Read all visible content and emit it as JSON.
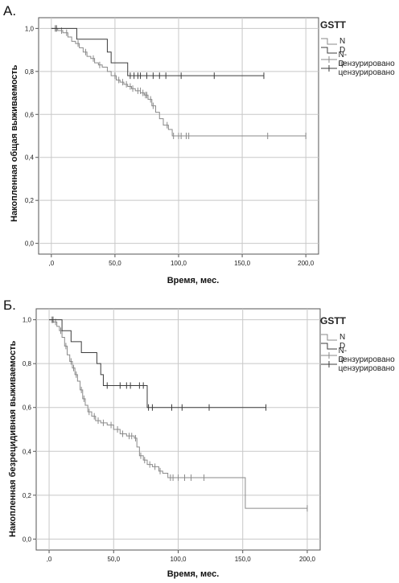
{
  "panels": [
    {
      "label": "А.",
      "legend": {
        "title": "GSTT",
        "items": [
          "N",
          "D",
          "N-цензурировано",
          "D-цензурировано"
        ]
      }
    },
    {
      "label": "Б.",
      "legend": {
        "title": "GSTT",
        "items": [
          "N",
          "D",
          "N-цензурировано",
          "D-цензурировано"
        ]
      }
    }
  ],
  "colors": {
    "N": "#8a8a8a",
    "D": "#3c3c3c",
    "grid": "#c8c8c8",
    "frame": "#555555"
  },
  "chart_data": [
    {
      "type": "line",
      "title": "",
      "xlabel": "Время, мес.",
      "ylabel": "Накопленная общая выживаемость",
      "xlim": [
        -10,
        210
      ],
      "ylim": [
        -0.05,
        1.05
      ],
      "xticks": [
        0,
        50,
        100,
        150,
        200
      ],
      "xtick_labels": [
        ",0",
        "50,0",
        "100,0",
        "150,0",
        "200,0"
      ],
      "yticks": [
        0,
        0.2,
        0.4,
        0.6,
        0.8,
        1.0
      ],
      "ytick_labels": [
        "0,0",
        "0,2",
        "0,4",
        "0,6",
        "0,8",
        "1,0"
      ],
      "grid": true,
      "legend_position": "right",
      "series": [
        {
          "name": "N",
          "steps": [
            [
              0,
              1.0
            ],
            [
              5,
              0.99
            ],
            [
              9,
              0.98
            ],
            [
              13,
              0.96
            ],
            [
              16,
              0.94
            ],
            [
              19,
              0.93
            ],
            [
              22,
              0.91
            ],
            [
              25,
              0.89
            ],
            [
              28,
              0.87
            ],
            [
              31,
              0.86
            ],
            [
              34,
              0.84
            ],
            [
              37,
              0.83
            ],
            [
              40,
              0.82
            ],
            [
              44,
              0.8
            ],
            [
              47,
              0.78
            ],
            [
              51,
              0.76
            ],
            [
              54,
              0.75
            ],
            [
              57,
              0.74
            ],
            [
              60,
              0.73
            ],
            [
              63,
              0.72
            ],
            [
              66,
              0.71
            ],
            [
              70,
              0.7
            ],
            [
              73,
              0.69
            ],
            [
              76,
              0.67
            ],
            [
              79,
              0.64
            ],
            [
              82,
              0.61
            ],
            [
              85,
              0.58
            ],
            [
              88,
              0.55
            ],
            [
              92,
              0.53
            ],
            [
              95,
              0.5
            ],
            [
              200,
              0.5
            ]
          ],
          "censored": [
            [
              3,
              1.0
            ],
            [
              8,
              0.99
            ],
            [
              12,
              0.98
            ],
            [
              21,
              0.93
            ],
            [
              27,
              0.89
            ],
            [
              33,
              0.86
            ],
            [
              38,
              0.83
            ],
            [
              50,
              0.78
            ],
            [
              53,
              0.76
            ],
            [
              56,
              0.75
            ],
            [
              59,
              0.74
            ],
            [
              62,
              0.73
            ],
            [
              64,
              0.72
            ],
            [
              68,
              0.71
            ],
            [
              70,
              0.71
            ],
            [
              72,
              0.7
            ],
            [
              74,
              0.69
            ],
            [
              75,
              0.69
            ],
            [
              78,
              0.67
            ],
            [
              80,
              0.64
            ],
            [
              91,
              0.55
            ],
            [
              96,
              0.5
            ],
            [
              100,
              0.5
            ],
            [
              102,
              0.5
            ],
            [
              106,
              0.5
            ],
            [
              108,
              0.5
            ],
            [
              170,
              0.5
            ],
            [
              200,
              0.5
            ]
          ]
        },
        {
          "name": "D",
          "steps": [
            [
              0,
              1.0
            ],
            [
              20,
              0.95
            ],
            [
              44,
              0.89
            ],
            [
              47,
              0.84
            ],
            [
              60,
              0.78
            ],
            [
              167,
              0.78
            ]
          ],
          "censored": [
            [
              4,
              1.0
            ],
            [
              62,
              0.78
            ],
            [
              65,
              0.78
            ],
            [
              68,
              0.78
            ],
            [
              70,
              0.78
            ],
            [
              75,
              0.78
            ],
            [
              80,
              0.78
            ],
            [
              85,
              0.78
            ],
            [
              90,
              0.78
            ],
            [
              102,
              0.78
            ],
            [
              128,
              0.78
            ],
            [
              167,
              0.78
            ]
          ]
        }
      ]
    },
    {
      "type": "line",
      "title": "",
      "xlabel": "Время, мес.",
      "ylabel": "Накопленная безрецидивная выживаемость",
      "xlim": [
        -10,
        210
      ],
      "ylim": [
        -0.05,
        1.05
      ],
      "xticks": [
        0,
        50,
        100,
        150,
        200
      ],
      "xtick_labels": [
        ",0",
        "50,0",
        "100,0",
        "150,0",
        "200,0"
      ],
      "yticks": [
        0,
        0.2,
        0.4,
        0.6,
        0.8,
        1.0
      ],
      "ytick_labels": [
        "0,0",
        "0,2",
        "0,4",
        "0,6",
        "0,8",
        "1,0"
      ],
      "grid": true,
      "legend_position": "right",
      "series": [
        {
          "name": "N",
          "steps": [
            [
              0,
              1.0
            ],
            [
              3,
              0.99
            ],
            [
              6,
              0.97
            ],
            [
              8,
              0.95
            ],
            [
              10,
              0.92
            ],
            [
              12,
              0.88
            ],
            [
              14,
              0.84
            ],
            [
              16,
              0.81
            ],
            [
              18,
              0.78
            ],
            [
              20,
              0.75
            ],
            [
              22,
              0.72
            ],
            [
              24,
              0.68
            ],
            [
              26,
              0.64
            ],
            [
              28,
              0.61
            ],
            [
              30,
              0.58
            ],
            [
              33,
              0.56
            ],
            [
              36,
              0.54
            ],
            [
              40,
              0.53
            ],
            [
              45,
              0.52
            ],
            [
              50,
              0.5
            ],
            [
              55,
              0.48
            ],
            [
              60,
              0.47
            ],
            [
              66,
              0.46
            ],
            [
              68,
              0.42
            ],
            [
              70,
              0.38
            ],
            [
              73,
              0.36
            ],
            [
              76,
              0.34
            ],
            [
              80,
              0.33
            ],
            [
              85,
              0.31
            ],
            [
              88,
              0.3
            ],
            [
              92,
              0.28
            ],
            [
              150,
              0.28
            ],
            [
              152,
              0.14
            ],
            [
              200,
              0.14
            ]
          ],
          "censored": [
            [
              2,
              1.0
            ],
            [
              5,
              0.99
            ],
            [
              9,
              0.95
            ],
            [
              13,
              0.88
            ],
            [
              17,
              0.81
            ],
            [
              19,
              0.78
            ],
            [
              21,
              0.75
            ],
            [
              25,
              0.68
            ],
            [
              27,
              0.64
            ],
            [
              31,
              0.58
            ],
            [
              35,
              0.56
            ],
            [
              38,
              0.54
            ],
            [
              42,
              0.53
            ],
            [
              48,
              0.52
            ],
            [
              53,
              0.5
            ],
            [
              57,
              0.48
            ],
            [
              62,
              0.47
            ],
            [
              64,
              0.47
            ],
            [
              67,
              0.46
            ],
            [
              71,
              0.38
            ],
            [
              74,
              0.36
            ],
            [
              78,
              0.34
            ],
            [
              82,
              0.33
            ],
            [
              86,
              0.31
            ],
            [
              94,
              0.28
            ],
            [
              96,
              0.28
            ],
            [
              100,
              0.28
            ],
            [
              105,
              0.28
            ],
            [
              110,
              0.28
            ],
            [
              120,
              0.28
            ],
            [
              200,
              0.14
            ]
          ]
        },
        {
          "name": "D",
          "steps": [
            [
              0,
              1.0
            ],
            [
              10,
              0.95
            ],
            [
              17,
              0.9
            ],
            [
              25,
              0.85
            ],
            [
              37,
              0.8
            ],
            [
              40,
              0.75
            ],
            [
              42,
              0.7
            ],
            [
              75,
              0.7
            ],
            [
              76,
              0.6
            ],
            [
              168,
              0.6
            ]
          ],
          "censored": [
            [
              3,
              1.0
            ],
            [
              45,
              0.7
            ],
            [
              55,
              0.7
            ],
            [
              60,
              0.7
            ],
            [
              63,
              0.7
            ],
            [
              70,
              0.7
            ],
            [
              73,
              0.7
            ],
            [
              77,
              0.6
            ],
            [
              80,
              0.6
            ],
            [
              95,
              0.6
            ],
            [
              103,
              0.6
            ],
            [
              124,
              0.6
            ],
            [
              168,
              0.6
            ]
          ]
        }
      ]
    }
  ]
}
